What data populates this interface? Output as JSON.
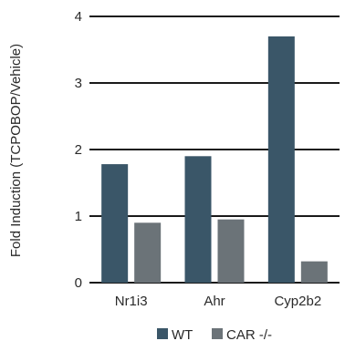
{
  "chart_data": {
    "type": "bar",
    "title": "",
    "xlabel": "",
    "ylabel": "Fold Induction (TCPOBOP/Vehicle)",
    "ylim": [
      0,
      4
    ],
    "yticks": [
      0,
      1,
      2,
      3,
      4
    ],
    "grid": true,
    "legend_position": "bottom",
    "categories": [
      "Nr1i3",
      "Ahr",
      "Cyp2b2"
    ],
    "series": [
      {
        "name": "WT",
        "color": "#3a5668",
        "values": [
          1.78,
          1.9,
          3.7
        ]
      },
      {
        "name": "CAR -/-",
        "color": "#6b7378",
        "values": [
          0.9,
          0.95,
          0.32
        ]
      }
    ]
  }
}
